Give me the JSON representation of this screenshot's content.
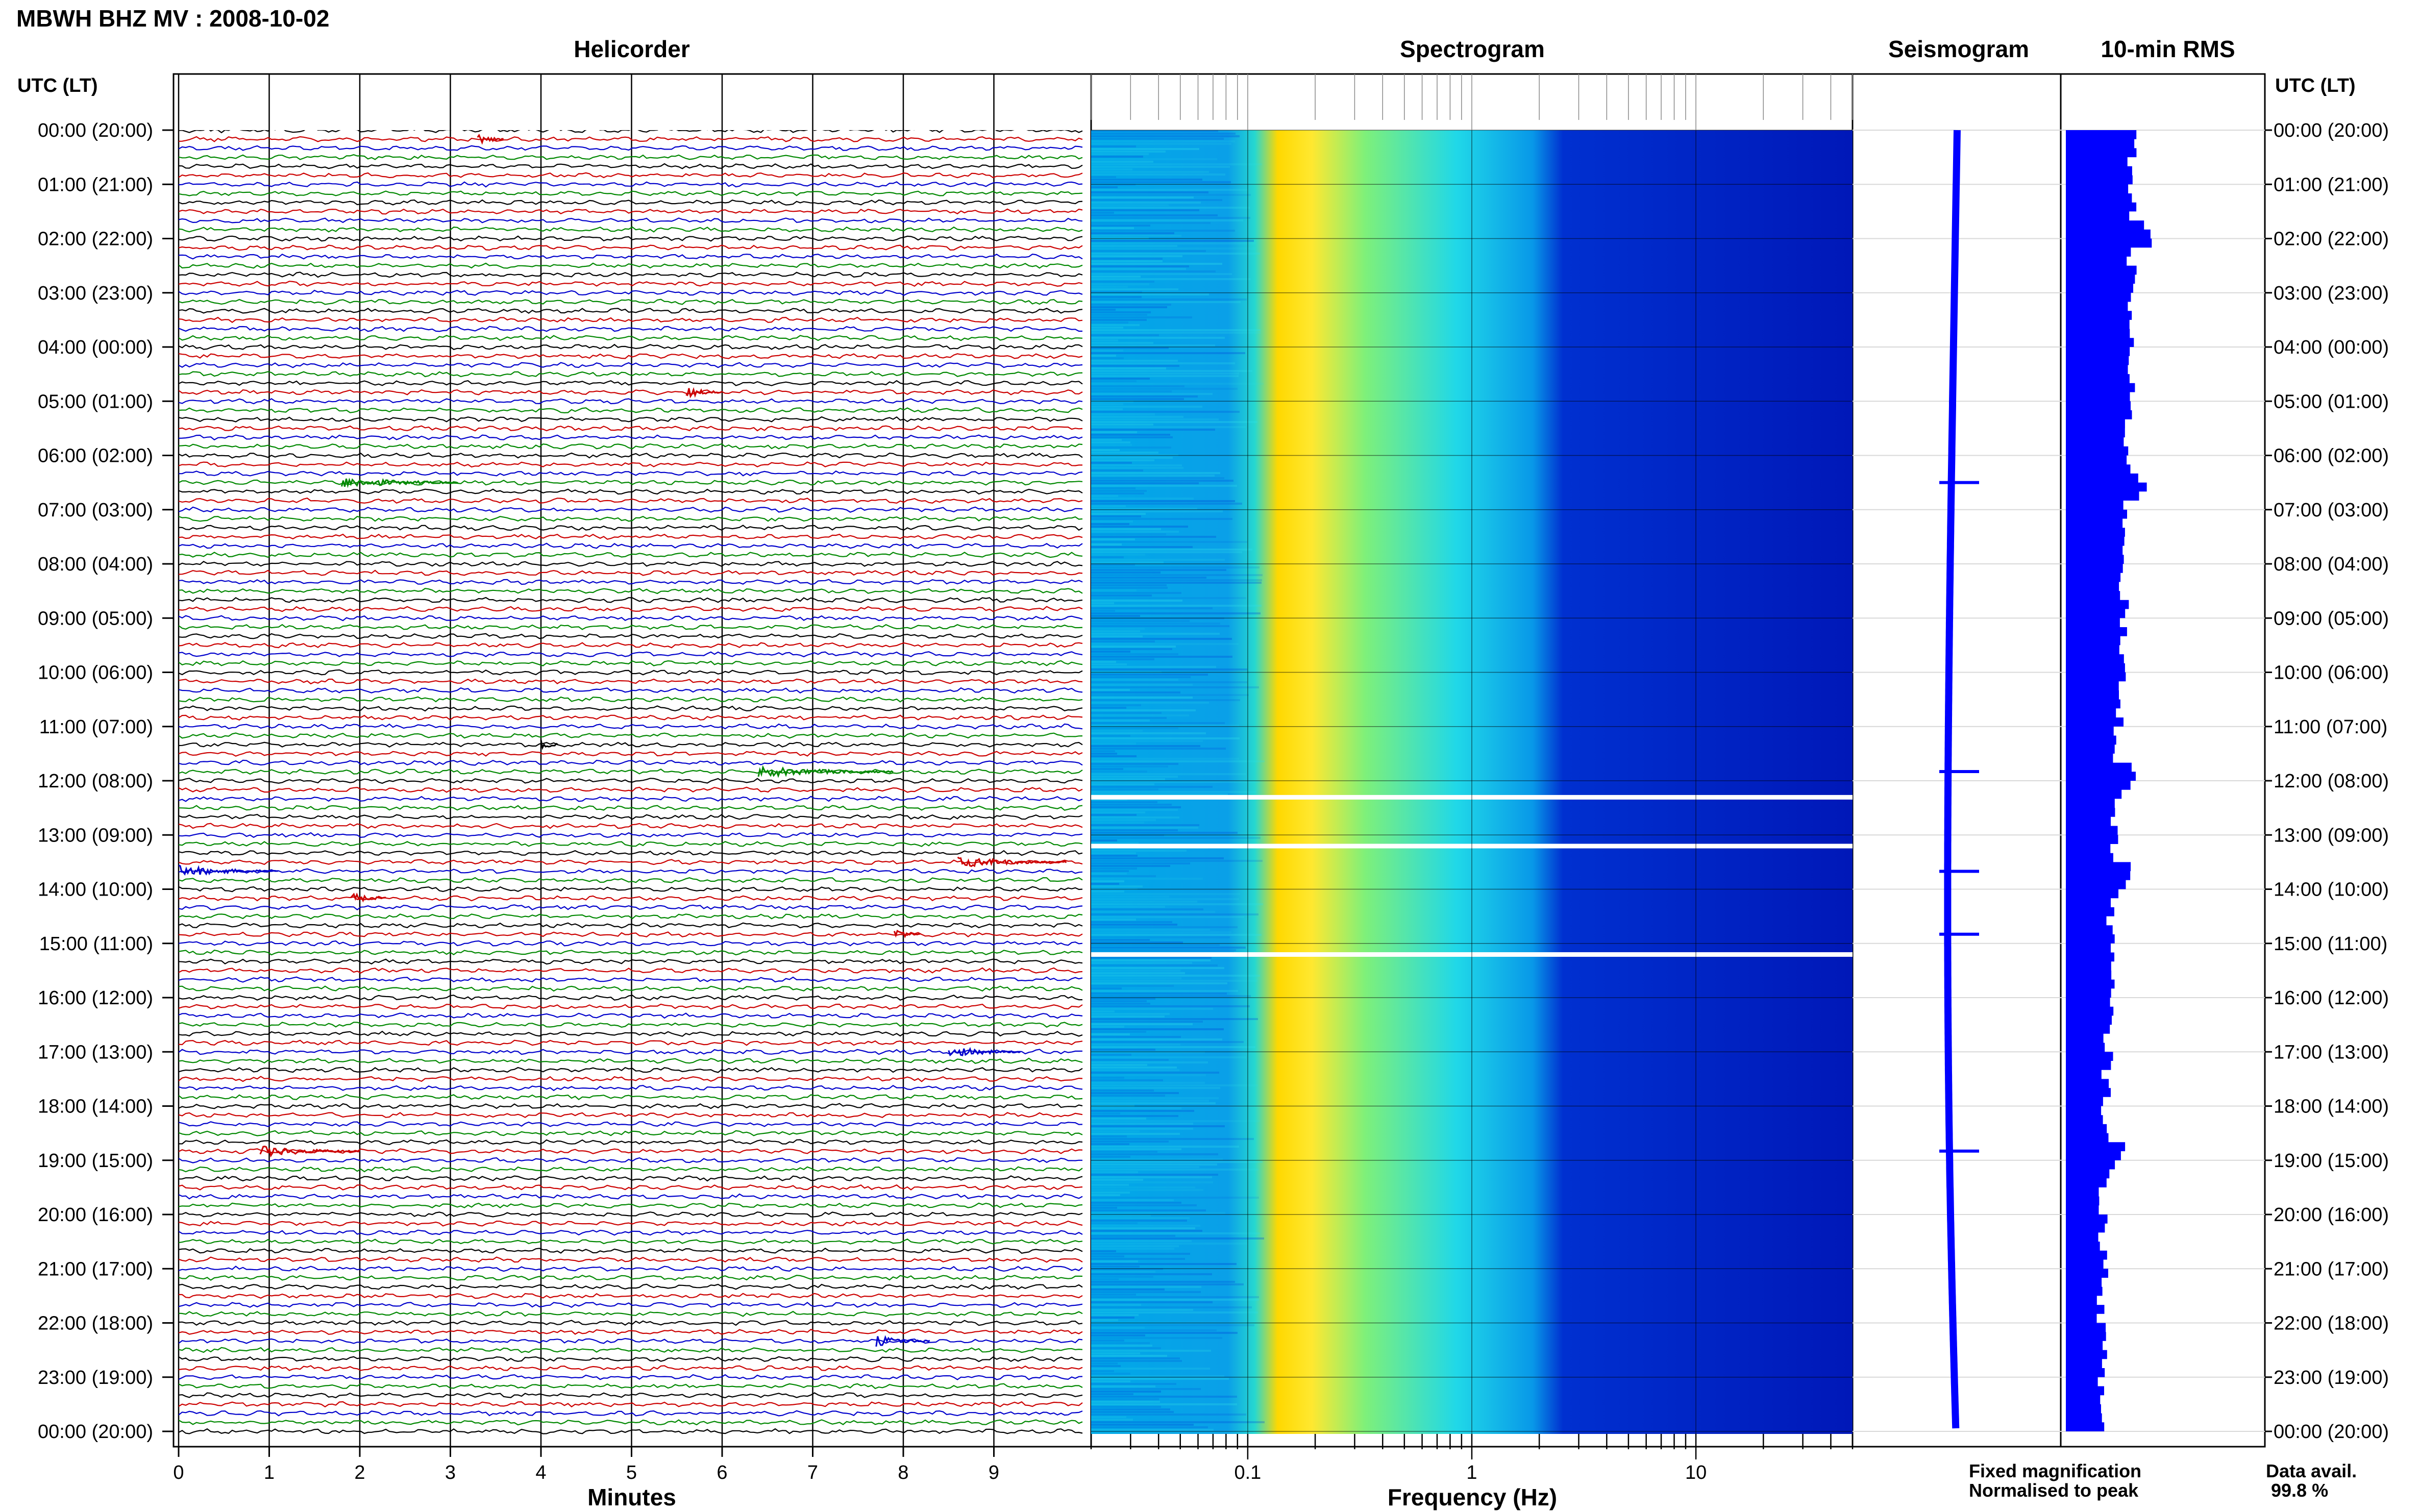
{
  "header": {
    "title": "MBWH BHZ MV : 2008-10-02"
  },
  "time_axis": {
    "header": "UTC (LT)",
    "labels": [
      "00:00 (20:00)",
      "01:00 (21:00)",
      "02:00 (22:00)",
      "03:00 (23:00)",
      "04:00 (00:00)",
      "05:00 (01:00)",
      "06:00 (02:00)",
      "07:00 (03:00)",
      "08:00 (04:00)",
      "09:00 (05:00)",
      "10:00 (06:00)",
      "11:00 (07:00)",
      "12:00 (08:00)",
      "13:00 (09:00)",
      "14:00 (10:00)",
      "15:00 (11:00)",
      "16:00 (12:00)",
      "17:00 (13:00)",
      "18:00 (14:00)",
      "19:00 (15:00)",
      "20:00 (16:00)",
      "21:00 (17:00)",
      "22:00 (18:00)",
      "23:00 (19:00)",
      "00:00 (20:00)"
    ]
  },
  "chart_data": [
    {
      "type": "line",
      "title": "Helicorder",
      "xlabel": "Minutes",
      "xlim": [
        0,
        10
      ],
      "x_ticks": [
        0,
        1,
        2,
        3,
        4,
        5,
        6,
        7,
        8,
        9
      ],
      "traces_per_hour": 6,
      "trace_colors": [
        "#000000",
        "#cc0000",
        "#0000cc",
        "#008800"
      ],
      "events": [
        {
          "hour": 0.2,
          "minute": 3.3,
          "duration": 0.3
        },
        {
          "hour": 4.83,
          "minute": 5.6,
          "duration": 0.4
        },
        {
          "hour": 6.5,
          "minute": 1.8,
          "duration": 1.3
        },
        {
          "hour": 11.33,
          "minute": 4.0,
          "duration": 0.2
        },
        {
          "hour": 11.83,
          "minute": 6.4,
          "duration": 1.5
        },
        {
          "hour": 13.5,
          "minute": 8.6,
          "duration": 1.2
        },
        {
          "hour": 13.67,
          "minute": 0.0,
          "duration": 1.1
        },
        {
          "hour": 14.17,
          "minute": 1.9,
          "duration": 0.4
        },
        {
          "hour": 14.83,
          "minute": 7.9,
          "duration": 0.3
        },
        {
          "hour": 17.0,
          "minute": 8.5,
          "duration": 0.8
        },
        {
          "hour": 18.83,
          "minute": 0.9,
          "duration": 1.1
        },
        {
          "hour": 22.33,
          "minute": 7.7,
          "duration": 0.6
        }
      ]
    },
    {
      "type": "heatmap",
      "title": "Spectrogram",
      "xlabel": "Frequency (Hz)",
      "x_scale": "log",
      "xlim": [
        0.02,
        50
      ],
      "x_ticks": [
        0.1,
        1,
        10
      ],
      "x_tick_labels": [
        "0.1",
        "1",
        "10"
      ],
      "colormap": "jet",
      "data_gaps_utc_hours": [
        12.3,
        13.2,
        15.2
      ]
    },
    {
      "type": "line",
      "title": "Seismogram",
      "description_values": "long-period trace, 24 h"
    },
    {
      "type": "bar",
      "title": "10-min RMS",
      "orientation": "horizontal",
      "color": "#0000ff",
      "bins_per_hour": 6
    }
  ],
  "legend": {
    "fixed": {
      "label": "Fixed magnification",
      "color": "#0000ff"
    },
    "normalised": {
      "label": "Normalised to peak",
      "color": "#ff0000"
    }
  },
  "availability": {
    "label": "Data avail.",
    "value": "99.8 %"
  }
}
